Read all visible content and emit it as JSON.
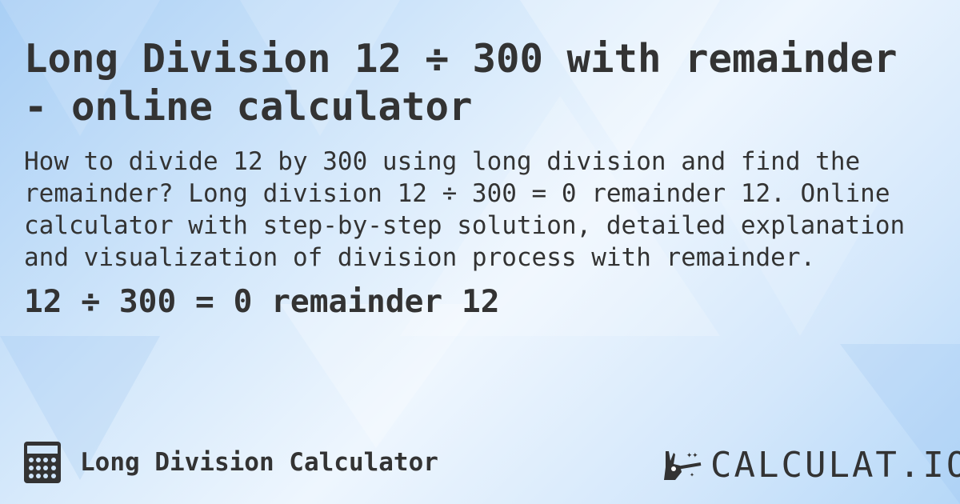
{
  "title": "Long Division 12 ÷ 300 with remainder - online calculator",
  "description": "How to divide 12 by 300 using long division and find the remainder? Long division 12 ÷ 300 = 0 remainder 12. Online calculator with step-by-step solution, detailed explanation and visualization of division process with remainder.",
  "result": "12 ÷ 300 = 0 remainder 12",
  "footer": {
    "icon": "calculator-icon",
    "label": "Long Division Calculator"
  },
  "logo": {
    "text": "CALCULAT.IO",
    "icon": "magic-hand-wand-icon"
  },
  "colors": {
    "text": "#333333",
    "background": "#cfe5fa"
  }
}
